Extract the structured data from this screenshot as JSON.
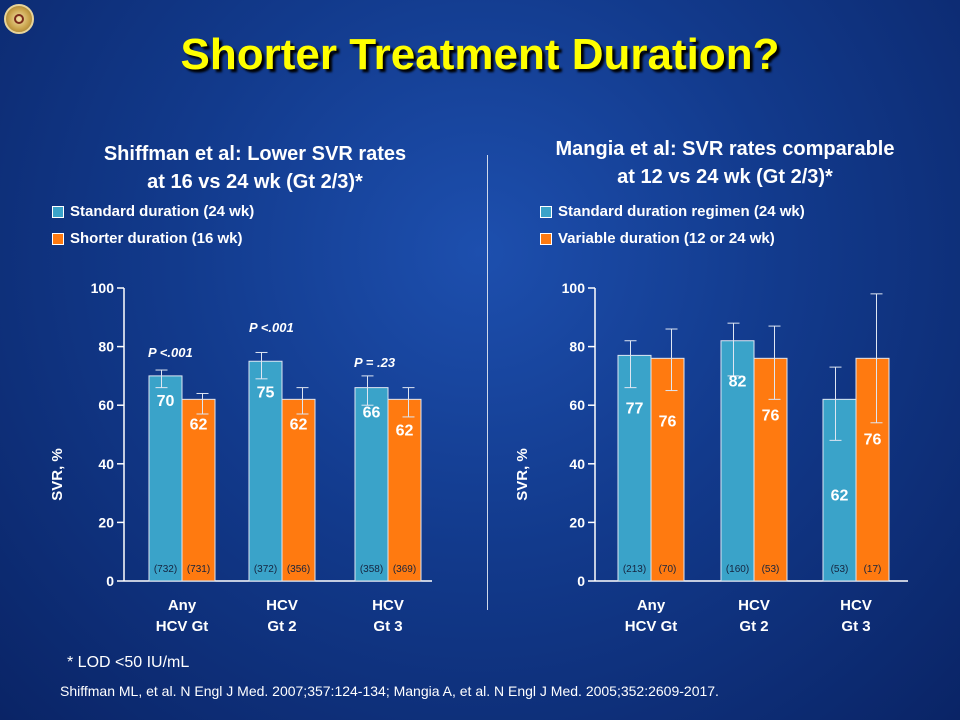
{
  "title": "Shorter Treatment Duration?",
  "footnote": "* LOD <50 IU/mL",
  "citation": "Shiffman ML, et al. N Engl J Med. 2007;357:124-134; Mangia A, et al. N Engl J Med. 2005;352:2609-2017.",
  "colors": {
    "standard": "#3aa3c9",
    "shorter": "#ff7a10",
    "title": "#ffff00"
  },
  "chart_data": [
    {
      "type": "bar",
      "title_lines": [
        "Shiffman et al: Lower SVR rates",
        "at 16 vs 24 wk  (Gt 2/3)*"
      ],
      "ylabel": "SVR, %",
      "ylim": [
        0,
        100
      ],
      "yticks": [
        0,
        20,
        40,
        60,
        80,
        100
      ],
      "categories": [
        [
          "Any",
          "HCV Gt"
        ],
        [
          "HCV",
          "Gt 2"
        ],
        [
          "HCV",
          "Gt 3"
        ]
      ],
      "series": [
        {
          "name": "Standard duration (24 wk)",
          "values": [
            70,
            75,
            66
          ],
          "n": [
            "(732)",
            "(372)",
            "(358)"
          ],
          "err_low": [
            66,
            69,
            60
          ],
          "err_high": [
            72,
            78,
            70
          ]
        },
        {
          "name": "Shorter duration (16 wk)",
          "values": [
            62,
            62,
            62
          ],
          "n": [
            "(731)",
            "(356)",
            "(369)"
          ],
          "err_low": [
            57,
            57,
            56
          ],
          "err_high": [
            64,
            66,
            66
          ]
        }
      ],
      "pvalues": [
        "P <.001",
        "P <.001",
        "P = .23"
      ]
    },
    {
      "type": "bar",
      "title_lines": [
        "Mangia et al: SVR rates comparable",
        "at 12 vs 24 wk (Gt 2/3)*"
      ],
      "ylabel": "SVR, %",
      "ylim": [
        0,
        100
      ],
      "yticks": [
        0,
        20,
        40,
        60,
        80,
        100
      ],
      "categories": [
        [
          "Any",
          "HCV Gt"
        ],
        [
          "HCV",
          "Gt 2"
        ],
        [
          "HCV",
          "Gt 3"
        ]
      ],
      "series": [
        {
          "name": "Standard duration regimen (24 wk)",
          "values": [
            77,
            82,
            62
          ],
          "n": [
            "(213)",
            "(160)",
            "(53)"
          ],
          "err_low": [
            66,
            70,
            48
          ],
          "err_high": [
            82,
            88,
            73
          ]
        },
        {
          "name": "Variable duration (12 or 24 wk)",
          "values": [
            76,
            76,
            76
          ],
          "n": [
            "(70)",
            "(53)",
            "(17)"
          ],
          "err_low": [
            65,
            62,
            54
          ],
          "err_high": [
            86,
            87,
            98
          ]
        }
      ],
      "pvalues": []
    }
  ]
}
